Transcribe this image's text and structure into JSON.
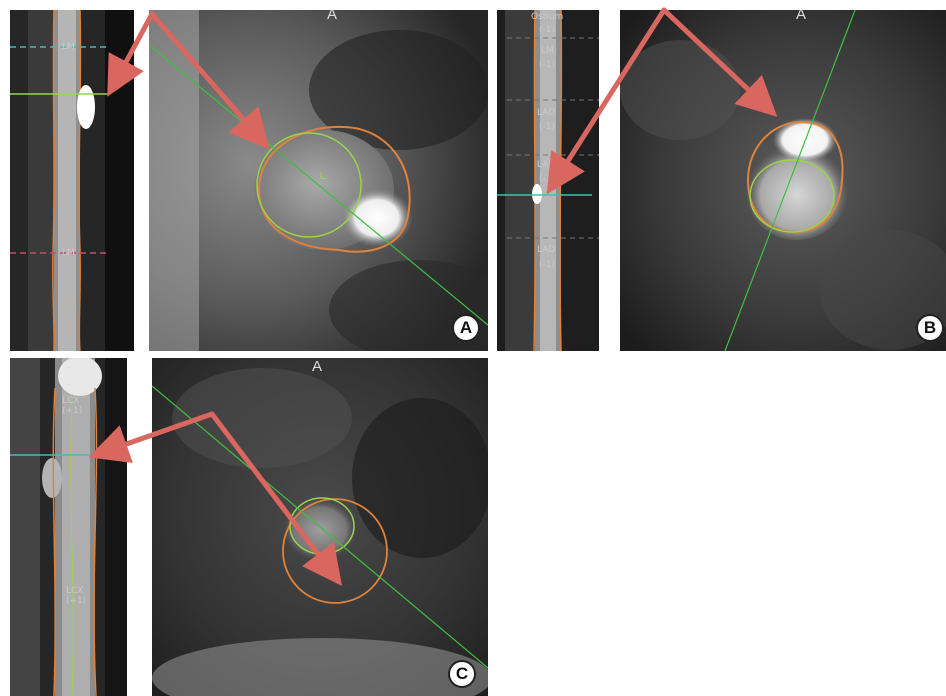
{
  "panels": {
    "a": {
      "label": "A",
      "view_letter": "A",
      "segment_tags": [
        "LM",
        "LM"
      ]
    },
    "b": {
      "label": "B",
      "view_letter": "A",
      "segment_tags": [
        "Ostium",
        "(-1)",
        "LM",
        "(-1)",
        "LAD",
        "(-1)",
        "LAD",
        "(-1)",
        "LAD",
        "(-1)"
      ]
    },
    "c": {
      "label": "C",
      "view_letter": "A",
      "segment_tags": [
        "LCX",
        "(+1)",
        "LCX",
        "(+1)"
      ]
    }
  },
  "colors": {
    "arrow": "#d9675f",
    "vessel_contour": "#e0823a",
    "lumen_contour": "#9bd34a",
    "centerline": "#3fbf3f",
    "cursor": "#4fb9b0"
  }
}
